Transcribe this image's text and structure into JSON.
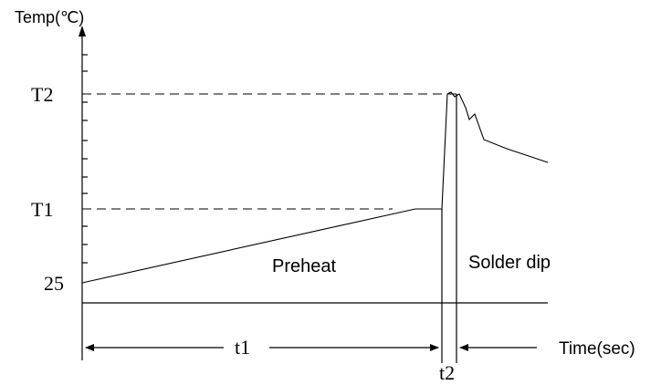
{
  "diagram": {
    "y_axis_label": "Temp(℃)",
    "x_axis_label": "Time(sec)",
    "temp_labels": {
      "t2_level": "T2",
      "t1_level": "T1",
      "ambient": "25"
    },
    "time_labels": {
      "t1": "t1",
      "t2": "t2"
    },
    "region_labels": {
      "preheat": "Preheat",
      "solder_dip": "Solder dip"
    }
  }
}
